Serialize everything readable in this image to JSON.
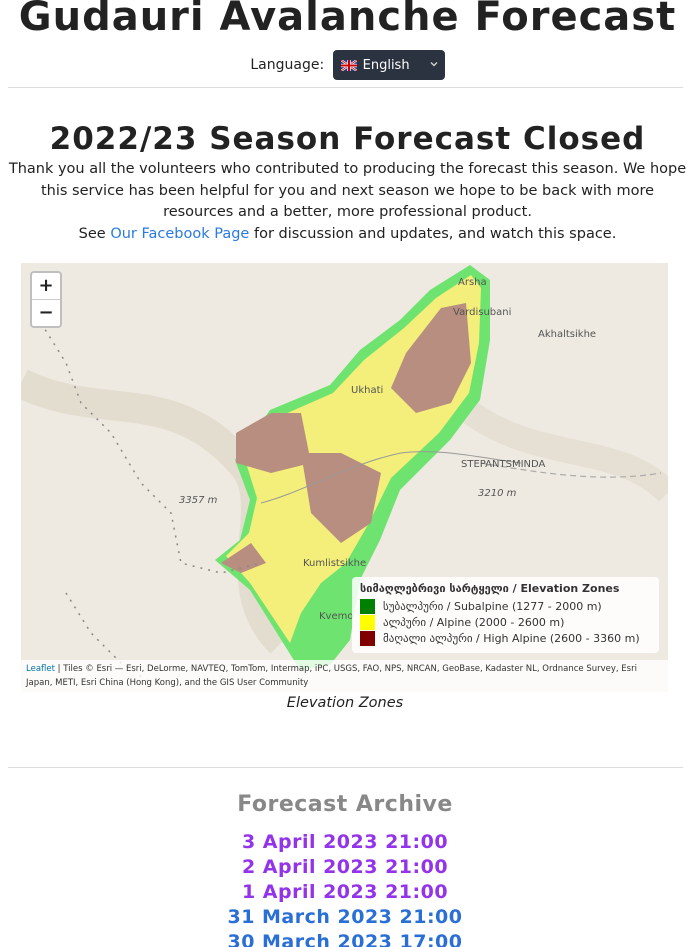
{
  "header": {
    "title": "Gudauri Avalanche Forecast",
    "language_label": "Language:",
    "language_selected": "English"
  },
  "notice": {
    "title": "2022/23 Season Forecast Closed",
    "paragraph": "Thank you all the volunteers who contributed to producing the forecast this season. We hope this service has been helpful for you and next season we hope to be back with more resources and a better, more professional product.",
    "see_prefix": "See",
    "link": "Our Facebook Page",
    "see_suffix": "for discussion and updates, and watch this space."
  },
  "map": {
    "zoom_in": "+",
    "zoom_out": "−",
    "labels": [
      "Arsha",
      "Vardisubani",
      "Akhaltsikhe",
      "Ukhati",
      "STEPANTSMINDA",
      "3357 m",
      "3210 m",
      "Kumlistsikhe",
      "Kvemo"
    ],
    "legend": {
      "title": "სიმაღლებრივი სარტყელი / Elevation Zones",
      "items": [
        {
          "label": "სუბალპური / Subalpine (1277 - 2000 m)",
          "color": "#008000"
        },
        {
          "label": "ალპური / Alpine (2000 - 2600 m)",
          "color": "#ffff00"
        },
        {
          "label": "მაღალი ალპური / High Alpine (2600 - 3360 m)",
          "color": "#800000"
        }
      ]
    },
    "attribution_link": "Leaflet",
    "attribution": "| Tiles © Esri — Esri, DeLorme, NAVTEQ, TomTom, Intermap, iPC, USGS, FAO, NPS, NRCAN, GeoBase, Kadaster NL, Ordnance Survey, Esri Japan, METI, Esri China (Hong Kong), and the GIS User Community",
    "caption": "Elevation Zones"
  },
  "archive": {
    "title": "Forecast Archive",
    "links": [
      "3 April 2023 21:00",
      "2 April 2023 21:00",
      "1 April 2023 21:00",
      "31 March 2023 21:00",
      "30 March 2023 17:00"
    ]
  }
}
